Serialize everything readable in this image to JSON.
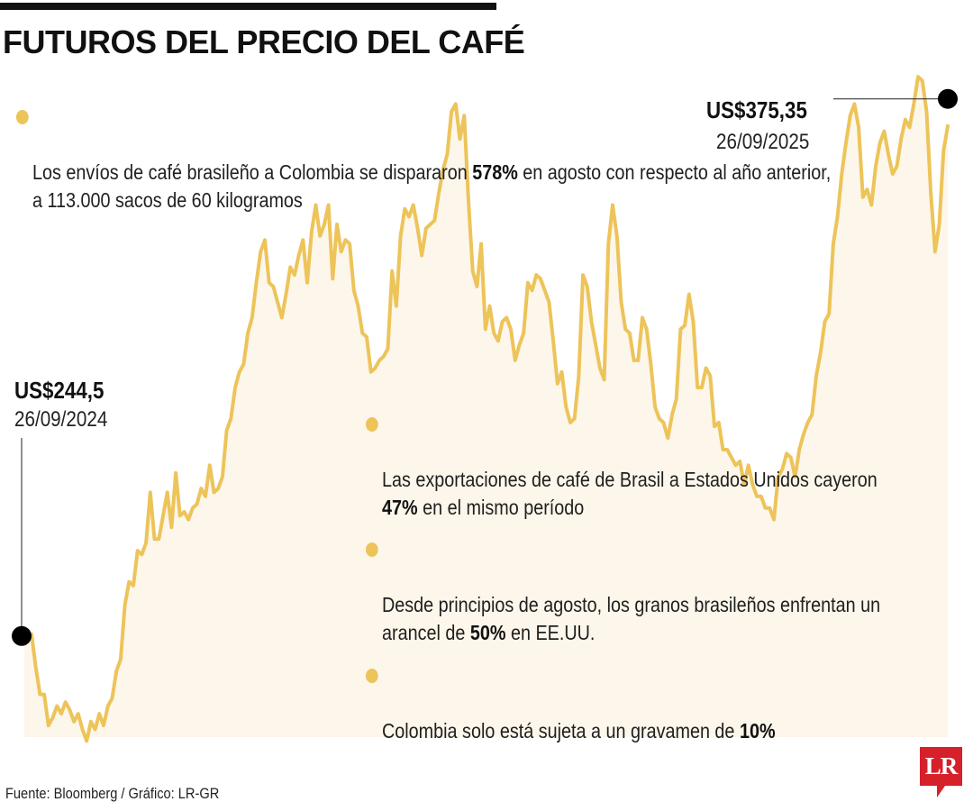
{
  "title": "FUTUROS DEL PRECIO DEL CAFÉ",
  "notes": [
    {
      "pre": "Los envíos de café brasileño a Colombia se dispararon ",
      "bold": "578%",
      "post": " en agosto con respecto al año anterior, a 113.000 sacos de 60 kilogramos"
    },
    {
      "pre": "Las exportaciones de café de Brasil a Estados Unidos cayeron ",
      "bold": "47%",
      "post": " en el mismo período"
    },
    {
      "pre": "Desde principios de agosto, los granos brasileños enfrentan un arancel de ",
      "bold": "50%",
      "post": " en EE.UU."
    },
    {
      "pre": "Colombia solo está sujeta a un gravamen de ",
      "bold": "10%",
      "post": ""
    }
  ],
  "annotations": {
    "start": {
      "value": "US$244,5",
      "date": "26/09/2024"
    },
    "end": {
      "value": "US$375,35",
      "date": "26/09/2025"
    }
  },
  "source": "Fuente: Bloomberg / Gráfico: LR-GR",
  "logo": "LR",
  "colors": {
    "line": "#EDC45A",
    "area": "#FDF6EA",
    "marker": "#000000",
    "logo": "#D6202A"
  },
  "chart_data": {
    "type": "area",
    "x_start": "26/09/2024",
    "x_end": "26/09/2025",
    "ylim": [
      218,
      392
    ],
    "values": [
      244.5,
      236,
      229,
      229,
      221,
      223,
      226,
      224,
      227,
      225,
      222,
      224,
      220,
      217,
      222,
      220,
      224,
      221,
      226,
      228,
      235,
      238,
      252,
      258,
      257,
      266,
      265,
      268,
      281,
      269,
      269,
      275,
      281,
      272,
      286,
      275,
      276,
      274,
      277,
      278,
      282,
      280,
      288,
      281,
      282,
      285,
      297,
      300,
      308,
      312,
      314,
      322,
      326,
      335,
      343,
      346,
      335,
      334,
      330,
      326,
      332,
      339,
      337,
      342,
      346,
      335,
      348,
      355,
      347,
      350,
      355,
      336,
      350,
      343,
      346,
      345,
      333,
      329,
      322,
      321,
      312,
      313,
      315,
      316,
      318,
      338,
      329,
      347,
      354,
      352,
      355,
      349,
      342,
      349,
      350,
      351,
      358,
      364,
      368,
      379,
      381,
      372,
      378,
      356,
      338,
      334,
      345,
      323,
      329,
      322,
      320,
      325,
      326,
      323,
      315,
      319,
      322,
      335,
      333,
      337,
      336,
      333,
      330,
      320,
      309,
      312,
      303,
      299,
      300,
      311,
      337,
      334,
      325,
      319,
      313,
      310,
      345,
      355,
      347,
      330,
      323,
      322,
      315,
      315,
      326,
      323,
      314,
      303,
      300,
      299,
      295,
      301,
      305,
      323,
      324,
      332,
      325,
      308,
      308,
      313,
      311,
      298,
      299,
      292,
      292,
      290,
      288,
      289,
      283,
      288,
      283,
      280,
      280,
      277,
      277,
      274,
      285,
      287,
      291,
      290,
      285,
      292,
      296,
      299,
      301,
      311,
      317,
      325,
      327,
      345,
      352,
      363,
      371,
      378,
      381,
      375,
      357,
      359,
      355,
      365,
      371,
      374,
      368,
      363,
      365,
      372,
      377,
      375,
      381,
      388,
      387,
      379,
      358,
      343,
      350,
      369,
      375.35
    ]
  }
}
